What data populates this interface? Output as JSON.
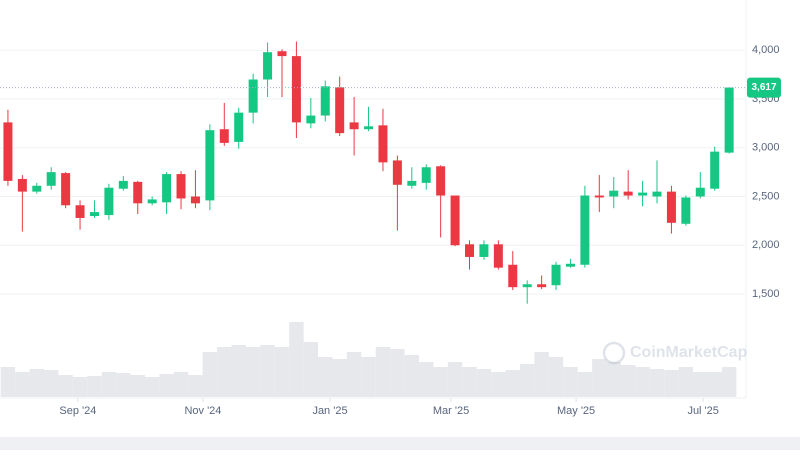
{
  "chart_data": {
    "type": "candlestick",
    "x": [
      0,
      1,
      2,
      3,
      4,
      5,
      6,
      7,
      8,
      9,
      10,
      11,
      12,
      13,
      14,
      15,
      16,
      17,
      18,
      19,
      20,
      21,
      22,
      23,
      24,
      25,
      26,
      27,
      28,
      29,
      30,
      31,
      32,
      33,
      34,
      35,
      36,
      37,
      38,
      39,
      40,
      41,
      42,
      43,
      44,
      45,
      46,
      47,
      48,
      49,
      50
    ],
    "open": [
      3260,
      2680,
      2550,
      2610,
      2740,
      2410,
      2300,
      2310,
      2580,
      2650,
      2430,
      2440,
      2730,
      2500,
      2460,
      3190,
      3060,
      3360,
      3700,
      3990,
      3940,
      3250,
      3330,
      3620,
      3260,
      3190,
      3230,
      2870,
      2610,
      2640,
      2810,
      2510,
      2010,
      1880,
      2010,
      1800,
      1570,
      1600,
      1590,
      1780,
      1800,
      2510,
      2500,
      2550,
      2510,
      2500,
      2550,
      2220,
      2500,
      2580,
      2950
    ],
    "high": [
      3390,
      2720,
      2640,
      2800,
      2750,
      2460,
      2460,
      2630,
      2710,
      2660,
      2500,
      2750,
      2760,
      2770,
      3240,
      3460,
      3410,
      3760,
      4080,
      4010,
      4090,
      3510,
      3690,
      3730,
      3520,
      3420,
      3400,
      2920,
      2800,
      2830,
      2820,
      2510,
      2050,
      2050,
      2050,
      1940,
      1640,
      1690,
      1830,
      1860,
      2610,
      2720,
      2700,
      2770,
      2660,
      2870,
      2610,
      2510,
      2750,
      3010,
      3620
    ],
    "low": [
      2610,
      2140,
      2530,
      2570,
      2380,
      2160,
      2280,
      2260,
      2560,
      2320,
      2410,
      2320,
      2370,
      2380,
      2360,
      3020,
      2990,
      3250,
      3520,
      3520,
      3100,
      3200,
      3270,
      3120,
      2920,
      3170,
      2760,
      2150,
      2580,
      2570,
      2080,
      1990,
      1750,
      1850,
      1750,
      1540,
      1400,
      1550,
      1540,
      1770,
      1770,
      2340,
      2380,
      2470,
      2400,
      2430,
      2120,
      2200,
      2480,
      2560,
      2940
    ],
    "close": [
      2660,
      2550,
      2610,
      2750,
      2410,
      2280,
      2340,
      2590,
      2660,
      2430,
      2470,
      2730,
      2480,
      2430,
      3180,
      3050,
      3360,
      3700,
      3980,
      3940,
      3260,
      3330,
      3630,
      3150,
      3190,
      3220,
      2850,
      2620,
      2660,
      2800,
      2510,
      2000,
      1880,
      2010,
      1770,
      1570,
      1600,
      1570,
      1800,
      1810,
      2510,
      2490,
      2560,
      2510,
      2540,
      2550,
      2230,
      2490,
      2590,
      2960,
      3617
    ],
    "volume": [
      30,
      25,
      28,
      27,
      22,
      20,
      21,
      25,
      24,
      22,
      20,
      23,
      25,
      22,
      45,
      50,
      52,
      50,
      52,
      50,
      75,
      55,
      40,
      38,
      45,
      40,
      50,
      48,
      42,
      35,
      30,
      35,
      30,
      28,
      25,
      27,
      33,
      45,
      40,
      30,
      25,
      38,
      35,
      32,
      30,
      28,
      27,
      30,
      25,
      25,
      30
    ],
    "volume_lim": [
      0,
      100
    ],
    "up_color": "#16c784",
    "down_color": "#ea3943",
    "volume_color": "#e6e8ec",
    "xlim": [
      -0.55,
      51.1
    ],
    "xticks": [
      {
        "value": 4.85,
        "label": "Sep '24"
      },
      {
        "value": 13.52,
        "label": "Nov '24"
      },
      {
        "value": 22.33,
        "label": "Jan '25"
      },
      {
        "value": 30.72,
        "label": "Mar '25"
      },
      {
        "value": 39.39,
        "label": "May '25"
      },
      {
        "value": 48.2,
        "label": "Jul '25"
      }
    ],
    "ylim": [
      1300,
      4500
    ],
    "yticks": [
      {
        "value": 1500,
        "label": "1,500"
      },
      {
        "value": 2000,
        "label": "2,000"
      },
      {
        "value": 2500,
        "label": "2,500"
      },
      {
        "value": 3000,
        "label": "3,000"
      },
      {
        "value": 3500,
        "label": "3,500"
      },
      {
        "value": 4000,
        "label": "4,000"
      }
    ],
    "last_price": {
      "value": 3617,
      "label": "3,617"
    },
    "grid": true,
    "watermark": "CoinMarketCap"
  }
}
